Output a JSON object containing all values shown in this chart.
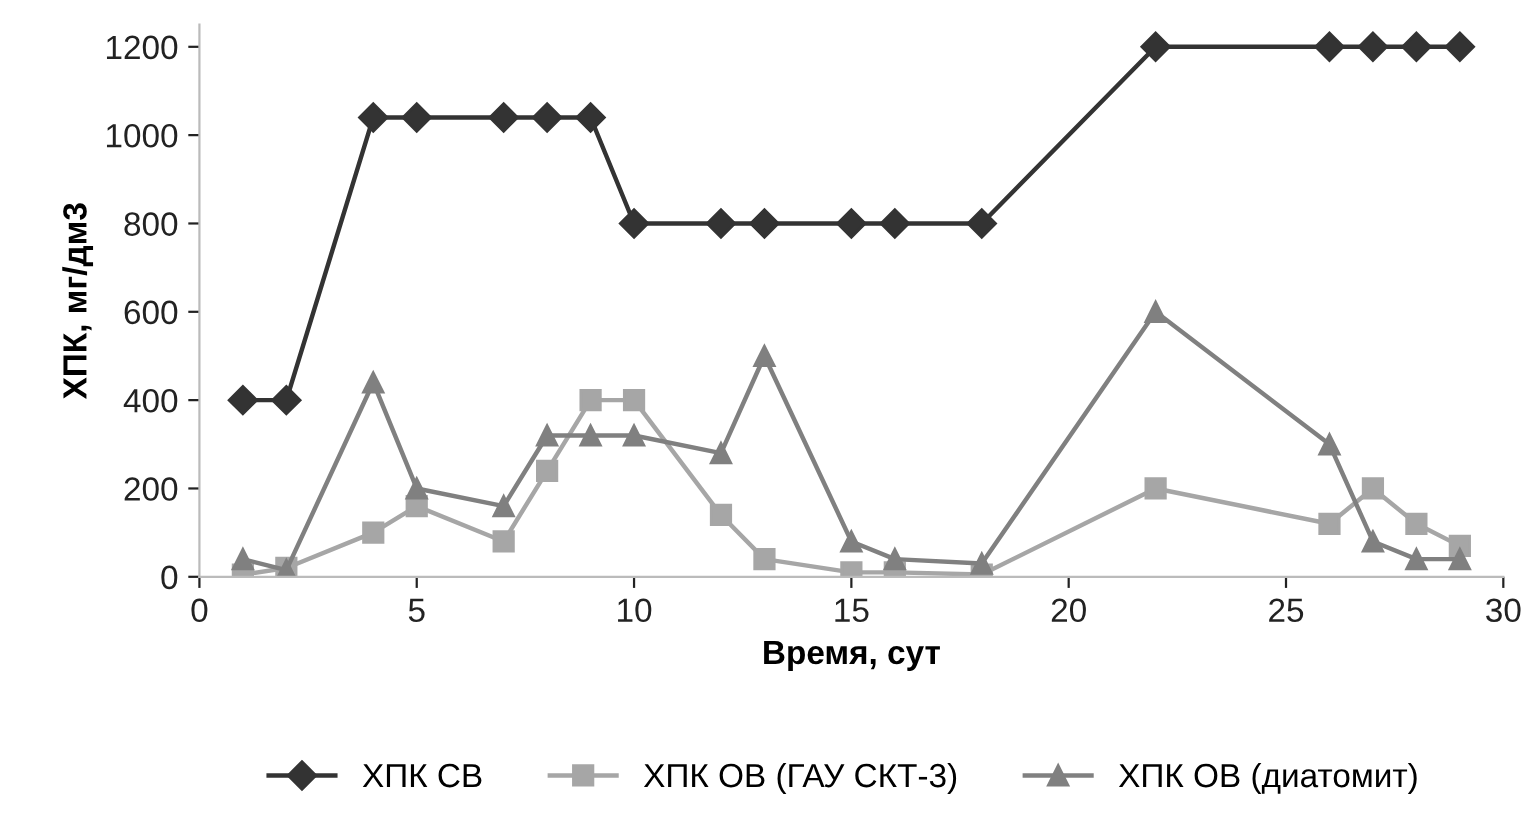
{
  "chart_data": {
    "type": "line",
    "xlabel": "Время, сут",
    "ylabel": "ХПК, мг/дм3",
    "x": [
      1,
      2,
      4,
      5,
      7,
      8,
      9,
      10,
      12,
      13,
      15,
      16,
      18,
      22,
      26,
      27,
      28,
      29
    ],
    "series": [
      {
        "name": "ХПК СВ",
        "color": "#333333",
        "marker": "diamond",
        "values": [
          400,
          400,
          1040,
          1040,
          1040,
          1040,
          1040,
          800,
          800,
          800,
          800,
          800,
          800,
          1200,
          1200,
          1200,
          1200,
          1200
        ]
      },
      {
        "name": "ХПК ОВ (ГАУ СКТ-3)",
        "color": "#a6a6a6",
        "marker": "square",
        "values": [
          5,
          20,
          100,
          160,
          80,
          240,
          400,
          400,
          140,
          40,
          10,
          10,
          5,
          200,
          120,
          200,
          120,
          70
        ]
      },
      {
        "name": "ХПК ОВ (диатомит)",
        "color": "#808080",
        "marker": "triangle",
        "values": [
          40,
          15,
          440,
          200,
          160,
          320,
          320,
          320,
          280,
          500,
          80,
          40,
          30,
          600,
          300,
          80,
          40,
          40
        ]
      }
    ],
    "xlim": [
      0,
      30
    ],
    "xticks": [
      0,
      5,
      10,
      15,
      20,
      25,
      30
    ],
    "ylim": [
      0,
      1250
    ],
    "yticks": [
      0,
      200,
      400,
      600,
      800,
      1000,
      1200
    ],
    "grid": false,
    "legend": "bottom",
    "line_style": "solid"
  }
}
